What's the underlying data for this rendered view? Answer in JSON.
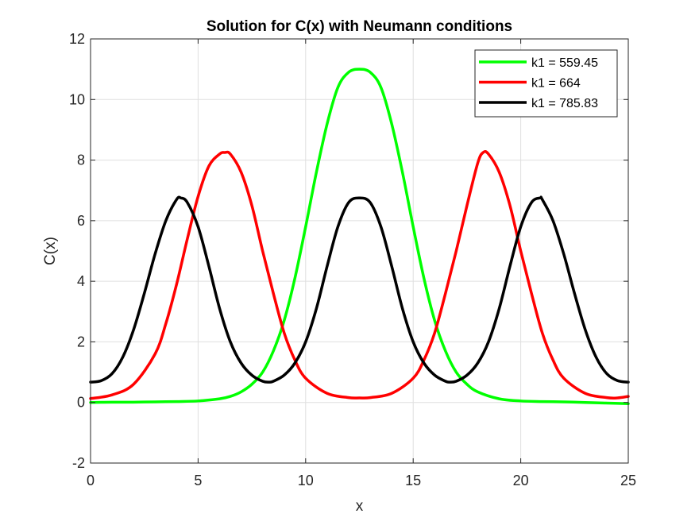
{
  "chart_data": {
    "type": "line",
    "title": "Solution for C(x) with Neumann conditions",
    "xlabel": "x",
    "ylabel": "C(x)",
    "xlim": [
      0,
      25
    ],
    "ylim": [
      -2,
      12
    ],
    "xticks": [
      0,
      5,
      10,
      15,
      20,
      25
    ],
    "yticks": [
      -2,
      0,
      2,
      4,
      6,
      8,
      10,
      12
    ],
    "grid": true,
    "legend_position": "top-right",
    "series": [
      {
        "name": "k1 = 559.45",
        "color": "#00ff00",
        "x": [
          0,
          1,
          2,
          3,
          4,
          5,
          6,
          6.5,
          7,
          7.5,
          8,
          8.5,
          9,
          9.5,
          10,
          10.5,
          11,
          11.5,
          12,
          12.5,
          13,
          13.5,
          14,
          14.5,
          15,
          15.5,
          16,
          16.5,
          17,
          17.5,
          18,
          19,
          20,
          21,
          22,
          23,
          24,
          25
        ],
        "y": [
          0.0,
          0.01,
          0.01,
          0.02,
          0.03,
          0.05,
          0.12,
          0.2,
          0.35,
          0.6,
          1.0,
          1.7,
          2.7,
          4.1,
          5.8,
          7.6,
          9.2,
          10.4,
          10.9,
          11.0,
          10.9,
          10.4,
          9.2,
          7.6,
          5.8,
          4.1,
          2.7,
          1.7,
          1.0,
          0.6,
          0.35,
          0.12,
          0.05,
          0.03,
          0.02,
          0.0,
          -0.02,
          -0.04
        ]
      },
      {
        "name": "k1 = 664",
        "color": "#ff0000",
        "x": [
          0,
          1,
          2,
          3,
          3.5,
          4,
          4.5,
          5,
          5.5,
          6,
          6.25,
          6.5,
          7,
          7.5,
          8,
          8.5,
          9,
          9.5,
          10,
          11,
          12,
          12.5,
          13,
          14,
          15,
          15.5,
          16,
          16.5,
          17,
          17.5,
          18,
          18.25,
          18.5,
          19,
          19.5,
          20,
          20.5,
          21,
          21.5,
          22,
          23,
          24,
          24.5,
          25
        ],
        "y": [
          0.13,
          0.25,
          0.6,
          1.6,
          2.6,
          3.9,
          5.4,
          6.8,
          7.8,
          8.2,
          8.25,
          8.2,
          7.6,
          6.5,
          5.0,
          3.6,
          2.3,
          1.4,
          0.8,
          0.3,
          0.16,
          0.15,
          0.16,
          0.3,
          0.8,
          1.4,
          2.3,
          3.6,
          5.0,
          6.5,
          7.9,
          8.25,
          8.2,
          7.6,
          6.5,
          5.0,
          3.6,
          2.3,
          1.4,
          0.8,
          0.3,
          0.16,
          0.15,
          0.2
        ]
      },
      {
        "name": "k1 = 785.83",
        "color": "#000000",
        "x": [
          0,
          0.5,
          1,
          1.5,
          2,
          2.5,
          3,
          3.5,
          4,
          4.2,
          4.5,
          5,
          5.5,
          6,
          6.5,
          7,
          7.5,
          8,
          8.3,
          8.5,
          9,
          9.5,
          10,
          10.5,
          11,
          11.5,
          12,
          12.5,
          13,
          13.5,
          14,
          14.5,
          15,
          15.5,
          16,
          16.5,
          16.7,
          17,
          17.5,
          18,
          18.5,
          19,
          19.5,
          20,
          20.5,
          20.9,
          21,
          21.5,
          22,
          22.5,
          23,
          23.5,
          24,
          24.5,
          25
        ],
        "y": [
          0.67,
          0.72,
          0.95,
          1.5,
          2.4,
          3.6,
          4.9,
          6.0,
          6.7,
          6.75,
          6.6,
          5.8,
          4.5,
          3.1,
          2.0,
          1.3,
          0.9,
          0.7,
          0.67,
          0.7,
          0.9,
          1.3,
          2.0,
          3.1,
          4.5,
          5.8,
          6.6,
          6.75,
          6.6,
          5.8,
          4.5,
          3.1,
          2.0,
          1.3,
          0.9,
          0.7,
          0.67,
          0.7,
          0.9,
          1.3,
          2.0,
          3.1,
          4.5,
          5.8,
          6.6,
          6.75,
          6.7,
          6.0,
          4.9,
          3.6,
          2.4,
          1.5,
          0.95,
          0.72,
          0.67
        ]
      }
    ]
  }
}
